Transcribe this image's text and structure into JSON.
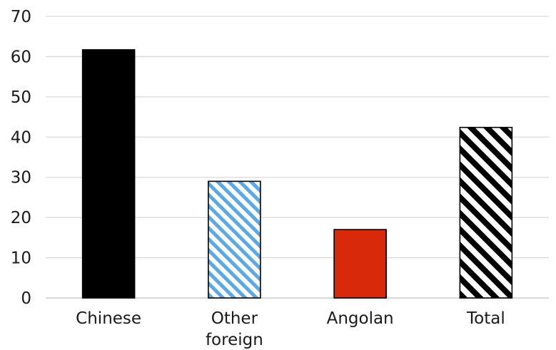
{
  "chart_data": {
    "type": "bar",
    "categories": [
      "Chinese",
      "Other foreign",
      "Angolan",
      "Total"
    ],
    "category_label_lines": [
      [
        "Chinese"
      ],
      [
        "Other",
        "foreign"
      ],
      [
        "Angolan"
      ],
      [
        "Total"
      ]
    ],
    "values": [
      61.7,
      29.0,
      17.0,
      42.4
    ],
    "ylim": [
      0,
      70
    ],
    "yticks": [
      0,
      10,
      20,
      30,
      40,
      50,
      60,
      70
    ],
    "grid": true,
    "legend": "none",
    "bar_styles": [
      {
        "fill": "#000000",
        "pattern": "solid",
        "stroke": "#000000"
      },
      {
        "fill": "#5aa9e6",
        "pattern": "diagonal-stripes",
        "stroke": "#000000"
      },
      {
        "fill": "#d82a0a",
        "pattern": "solid",
        "stroke": "#000000"
      },
      {
        "fill": "#000000",
        "pattern": "diagonal-stripes-bold",
        "stroke": "#000000"
      }
    ]
  }
}
